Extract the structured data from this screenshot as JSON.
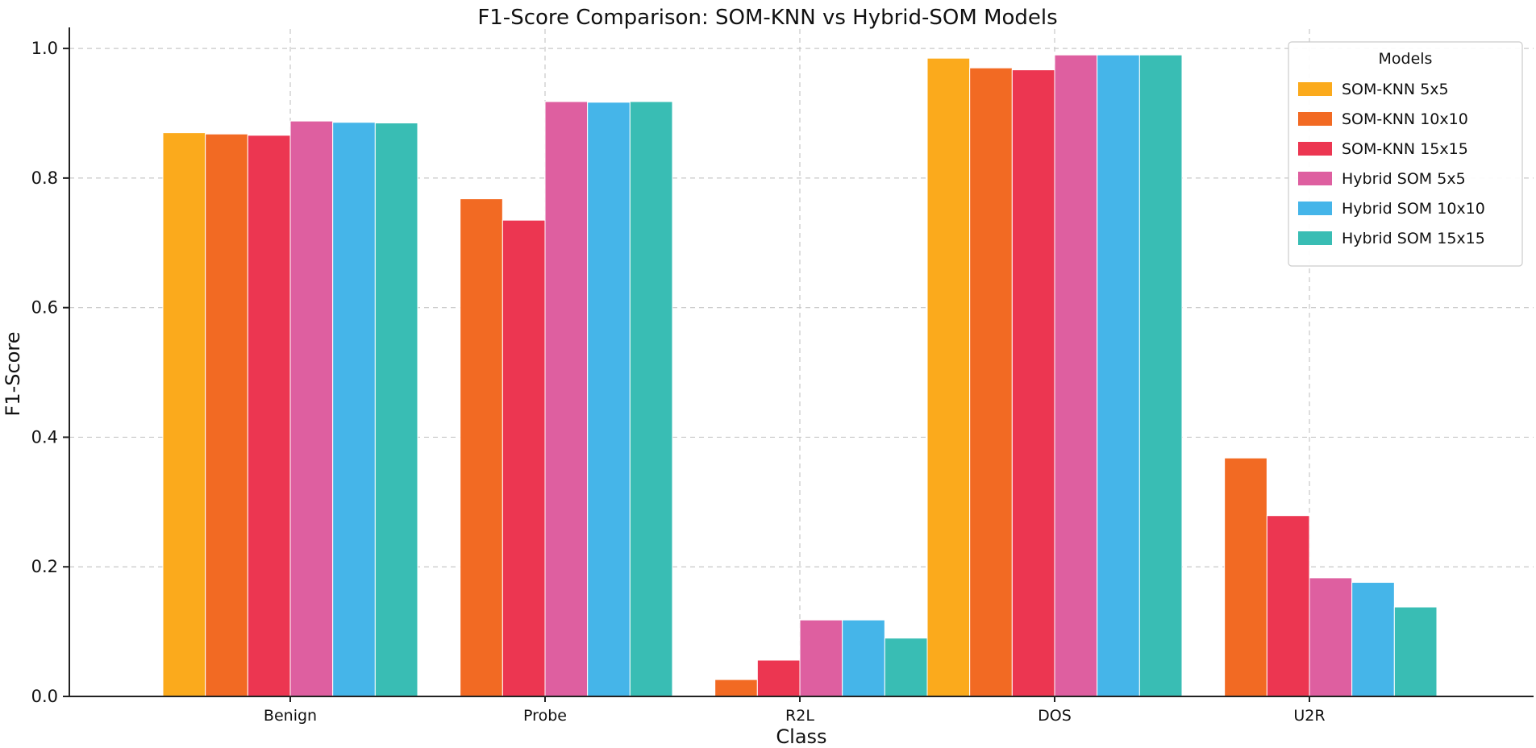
{
  "chart_data": {
    "type": "bar",
    "title": "F1-Score Comparison: SOM-KNN vs Hybrid-SOM Models",
    "xlabel": "Class",
    "ylabel": "F1-Score",
    "ylim": [
      0,
      1.03
    ],
    "yticks": [
      "0.0",
      "0.2",
      "0.4",
      "0.6",
      "0.8",
      "1.0"
    ],
    "ytick_values": [
      0,
      0.2,
      0.4,
      0.6,
      0.8,
      1.0
    ],
    "grid": true,
    "legend_title": "Models",
    "legend_position": "top-right",
    "categories": [
      "Benign",
      "Probe",
      "R2L",
      "DOS",
      "U2R"
    ],
    "series": [
      {
        "name": "SOM-KNN 5x5",
        "color": "#FBAA1C",
        "values": [
          0.87,
          null,
          null,
          0.985,
          null
        ]
      },
      {
        "name": "SOM-KNN 10x10",
        "color": "#F26A23",
        "values": [
          0.868,
          0.768,
          0.026,
          0.97,
          0.368
        ]
      },
      {
        "name": "SOM-KNN 15x15",
        "color": "#EC3651",
        "values": [
          0.866,
          0.735,
          0.056,
          0.967,
          0.279
        ]
      },
      {
        "name": "Hybrid SOM 5x5",
        "color": "#DE5FA0",
        "values": [
          0.888,
          0.918,
          0.118,
          0.99,
          0.183
        ]
      },
      {
        "name": "Hybrid SOM 10x10",
        "color": "#45B5E9",
        "values": [
          0.886,
          0.917,
          0.118,
          0.99,
          0.176
        ]
      },
      {
        "name": "Hybrid SOM 15x15",
        "color": "#39BDB4",
        "values": [
          0.885,
          0.918,
          0.09,
          0.99,
          0.138
        ]
      }
    ]
  }
}
